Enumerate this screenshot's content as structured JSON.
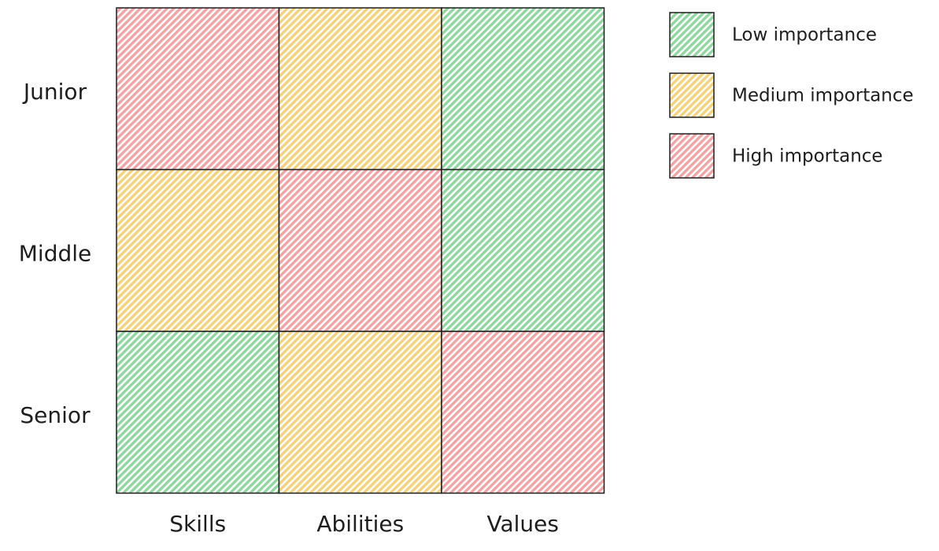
{
  "rows": [
    "Junior",
    "Middle",
    "Senior"
  ],
  "columns": [
    "Skills",
    "Abilities",
    "Values"
  ],
  "cells": [
    [
      "#f2a3a6",
      "#f3d27a",
      "#8fd6a0"
    ],
    [
      "#f3d27a",
      "#f2a3a6",
      "#8fd6a0"
    ],
    [
      "#8fd6a0",
      "#f3d27a",
      "#f2a3a6"
    ]
  ],
  "legend": [
    {
      "label": "Low importance",
      "color": "#8fd6a0"
    },
    {
      "label": "Medium importance",
      "color": "#f3d27a"
    },
    {
      "label": "High importance",
      "color": "#f2a3a6"
    }
  ]
}
